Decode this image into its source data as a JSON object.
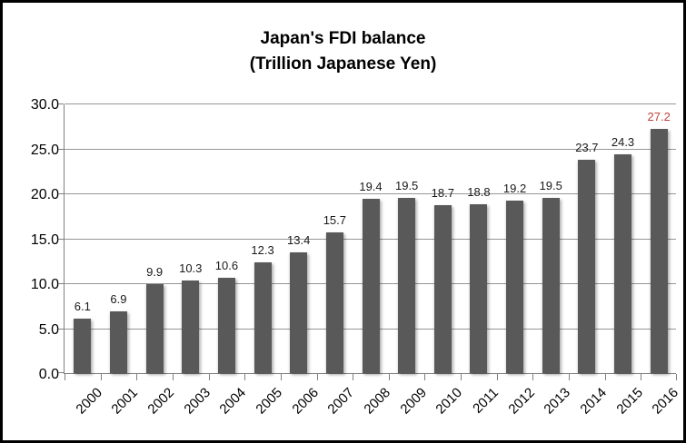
{
  "chart": {
    "title_line1": "Japan's FDI balance",
    "title_line2": "(Trillion Japanese Yen)"
  },
  "chart_data": {
    "type": "bar",
    "title": "Japan's FDI balance (Trillion Japanese Yen)",
    "categories": [
      "2000",
      "2001",
      "2002",
      "2003",
      "2004",
      "2005",
      "2006",
      "2007",
      "2008",
      "2009",
      "2010",
      "2011",
      "2012",
      "2013",
      "2014",
      "2015",
      "2016"
    ],
    "values": [
      6.1,
      6.9,
      9.9,
      10.3,
      10.6,
      12.3,
      13.4,
      15.7,
      19.4,
      19.5,
      18.7,
      18.8,
      19.2,
      19.5,
      23.7,
      24.3,
      27.2
    ],
    "data_labels": [
      "6.1",
      "6.9",
      "9.9",
      "10.3",
      "10.6",
      "12.3",
      "13.4",
      "15.7",
      "19.4",
      "19.5",
      "18.7",
      "18.8",
      "19.2",
      "19.5",
      "23.7",
      "24.3",
      "27.2"
    ],
    "xlabel": "",
    "ylabel": "",
    "ylim": [
      0,
      30
    ],
    "ytick_step": 5,
    "ytick_labels": [
      "0.0",
      "5.0",
      "10.0",
      "15.0",
      "20.0",
      "25.0",
      "30.0"
    ],
    "grid": true,
    "legend": "none",
    "colors": {
      "bar": "#595959",
      "data_label": "#1a1a1a",
      "last_data_label": "#be423d",
      "gridline": "#969696",
      "axis": "#808080",
      "frame_border": "#000000",
      "background": "#ffffff"
    }
  }
}
